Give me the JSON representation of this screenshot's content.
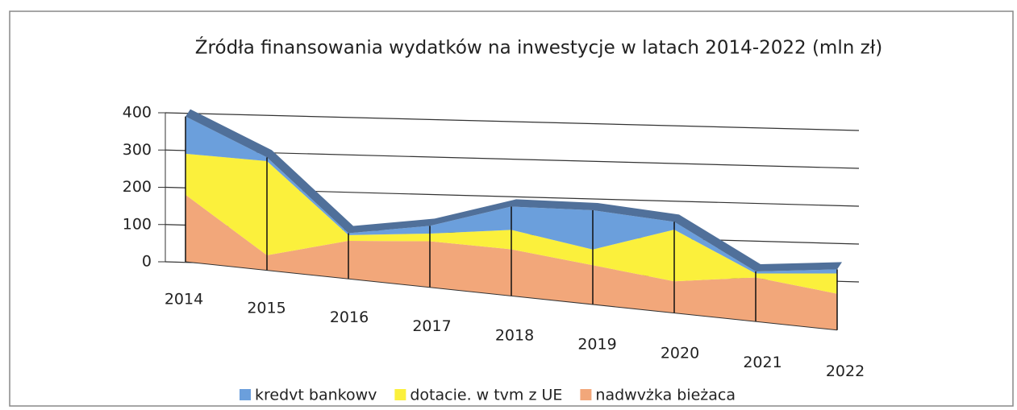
{
  "chart_data": {
    "type": "area3d",
    "title": "Źródła finansowania wydatków na inwestycje w latach 2014-2022 (mln zł)",
    "categories": [
      "2014",
      "2015",
      "2016",
      "2017",
      "2018",
      "2019",
      "2020",
      "2021",
      "2022"
    ],
    "series": [
      {
        "name": "nadwvżka bieżaca",
        "color": "#f2a77a",
        "values": [
          180,
          40,
          100,
          120,
          120,
          100,
          80,
          110,
          90
        ]
      },
      {
        "name": "dotacie. w tvm  z UE",
        "color": "#fbf03c",
        "values": [
          110,
          250,
          15,
          20,
          50,
          40,
          130,
          10,
          50
        ]
      },
      {
        "name": "kredvt bankowv",
        "color": "#6b9fdc",
        "values": [
          100,
          10,
          5,
          20,
          60,
          100,
          20,
          5,
          10
        ]
      }
    ],
    "legend_order": [
      2,
      1,
      0
    ],
    "ylim": [
      0,
      400
    ],
    "yticks": [
      0,
      100,
      200,
      300,
      400
    ],
    "grid": true
  }
}
